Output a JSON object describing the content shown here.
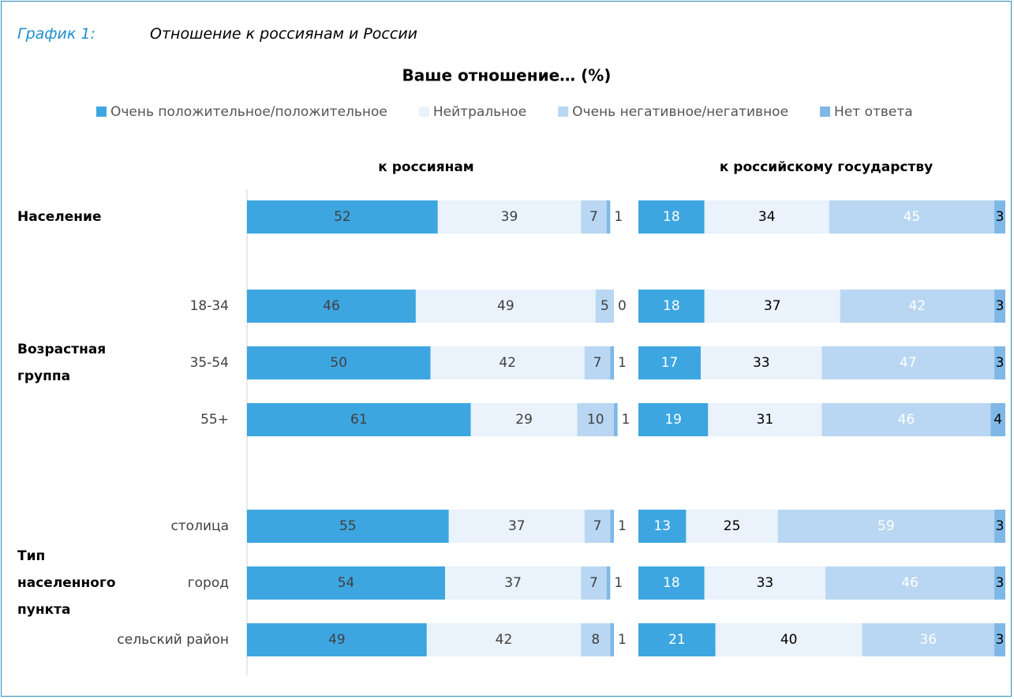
{
  "figure_label": "График 1:",
  "figure_title": "Отношение к россиянам и России",
  "chart_data": {
    "type": "bar",
    "orientation": "horizontal",
    "stacked": true,
    "title": "Ваше отношение… (%)",
    "series": [
      {
        "name": "Очень положительное/положительное",
        "color": "#3da6e0"
      },
      {
        "name": "Нейтральное",
        "color": "#eaf2fb"
      },
      {
        "name": "Очень негативное/негативное",
        "color": "#b9d7f2"
      },
      {
        "name": "Нет ответа",
        "color": "#7fb8e6"
      }
    ],
    "groups": [
      {
        "label": "Население",
        "categories": [
          null
        ]
      },
      {
        "label": "Возрастная группа",
        "categories": [
          "18-34",
          "35-54",
          "55+"
        ]
      },
      {
        "label": "Тип населенного пункта",
        "categories": [
          "столица",
          "город",
          "сельский район"
        ]
      }
    ],
    "panels": [
      {
        "title": "к россиянам",
        "values": [
          [
            52,
            46,
            50,
            61,
            55,
            54,
            49
          ],
          [
            39,
            49,
            42,
            29,
            37,
            37,
            42
          ],
          [
            7,
            5,
            7,
            10,
            7,
            7,
            8
          ],
          [
            1,
            0,
            1,
            1,
            1,
            1,
            1
          ]
        ]
      },
      {
        "title": "к российскому государству",
        "values": [
          [
            18,
            18,
            17,
            19,
            13,
            18,
            21
          ],
          [
            34,
            37,
            33,
            31,
            25,
            33,
            40
          ],
          [
            45,
            42,
            47,
            46,
            59,
            46,
            36
          ],
          [
            3,
            3,
            3,
            4,
            3,
            3,
            3
          ]
        ]
      }
    ]
  }
}
